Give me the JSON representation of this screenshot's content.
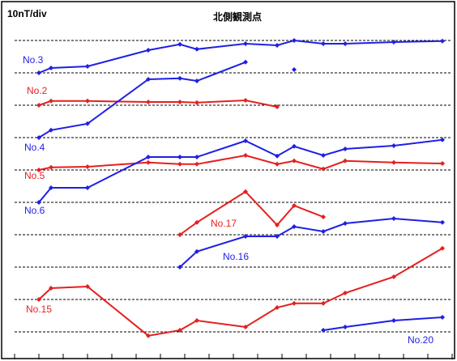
{
  "chart_data": {
    "type": "line",
    "title": "北側観測点",
    "scale_label": "10nT/div",
    "x": [
      1.0,
      1.5,
      3.0,
      5.5,
      6.8,
      7.5,
      9.5,
      10.8,
      11.5,
      12.7,
      13.6,
      15.6,
      17.6
    ],
    "xlim": [
      0,
      18
    ],
    "xticks": [
      0,
      1,
      2,
      3,
      4,
      5,
      6,
      7,
      8,
      9,
      10,
      11,
      12,
      13,
      14,
      15,
      16,
      17,
      18
    ],
    "ylim": [
      2.5,
      110.5
    ],
    "yticks": [
      10,
      20,
      30,
      40,
      50,
      60,
      70,
      80,
      90,
      100
    ],
    "grid": true,
    "series": [
      {
        "name": "No.3",
        "color": "#1f1fe6",
        "values": [
          90,
          91.5,
          92,
          97,
          98.8,
          97.3,
          99,
          98.5,
          100,
          99,
          99,
          99.5,
          99.8
        ]
      },
      {
        "name": "No.2",
        "color": "#e61f1f",
        "values": [
          80,
          81.3,
          81.3,
          81,
          81,
          80.8,
          81.5,
          79.5,
          null,
          null,
          null,
          null,
          null
        ]
      },
      {
        "name": "No.4",
        "color": "#1f1fe6",
        "values": [
          70,
          72.3,
          74.3,
          88,
          88.3,
          87.5,
          93.3,
          null,
          91,
          null,
          null,
          null,
          null
        ]
      },
      {
        "name": "No.5",
        "color": "#e61f1f",
        "values": [
          60,
          60.8,
          61,
          62.3,
          61.8,
          61.8,
          64.5,
          61.8,
          62.8,
          60.3,
          62.8,
          62.3,
          62
        ]
      },
      {
        "name": "No.6",
        "color": "#1f1fe6",
        "values": [
          50,
          54.5,
          54.5,
          64,
          64,
          64,
          69,
          64.3,
          67.3,
          64.5,
          66.5,
          67.5,
          69.3
        ]
      },
      {
        "name": "No.17",
        "color": "#e61f1f",
        "values": [
          null,
          null,
          null,
          null,
          40,
          43.8,
          53.3,
          43,
          49,
          45.5,
          null,
          null,
          null
        ]
      },
      {
        "name": "No.16",
        "color": "#1f1fe6",
        "values": [
          null,
          null,
          null,
          null,
          30,
          34.8,
          39.5,
          39.5,
          42.5,
          41,
          43.5,
          45,
          43.8
        ]
      },
      {
        "name": "No.15",
        "color": "#e61f1f",
        "values": [
          20,
          23.5,
          24,
          8.8,
          10.5,
          13.5,
          11.5,
          17.5,
          18.8,
          18.8,
          22,
          27,
          35.8
        ]
      },
      {
        "name": "No.20",
        "color": "#1f1fe6",
        "values": [
          null,
          null,
          null,
          null,
          null,
          null,
          null,
          null,
          null,
          10.5,
          11.5,
          13.5,
          14.5
        ]
      }
    ]
  }
}
